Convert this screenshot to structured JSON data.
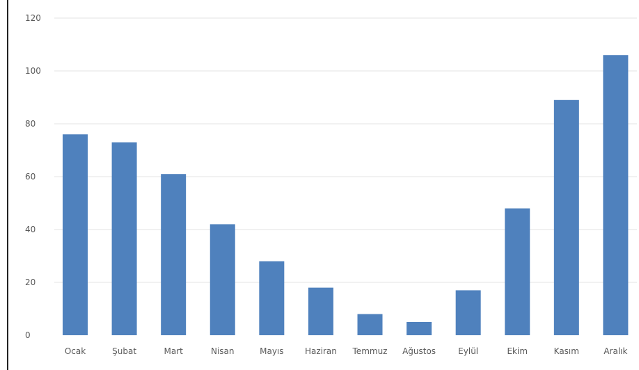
{
  "chart_data": {
    "type": "bar",
    "categories": [
      "Ocak",
      "Şubat",
      "Mart",
      "Nisan",
      "Mayıs",
      "Haziran",
      "Temmuz",
      "Ağustos",
      "Eylül",
      "Ekim",
      "Kasım",
      "Aralık"
    ],
    "values": [
      76,
      73,
      61,
      42,
      28,
      18,
      8,
      5,
      17,
      48,
      89,
      106
    ],
    "title": "",
    "xlabel": "",
    "ylabel": "",
    "ylim": [
      0,
      120
    ],
    "yticks": [
      0,
      20,
      40,
      60,
      80,
      100,
      120
    ],
    "grid": true,
    "bar_color": "#4F81BD",
    "grid_color": "#E3E3E3",
    "label_color": "#595959"
  }
}
